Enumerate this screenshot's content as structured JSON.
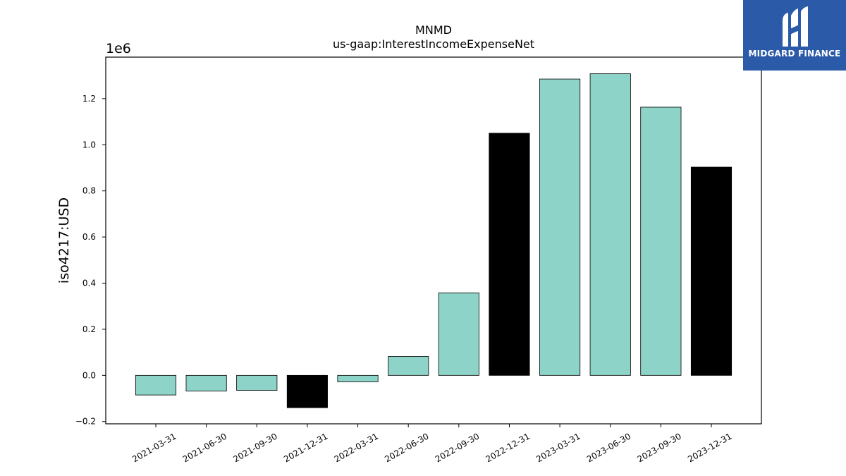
{
  "logo": {
    "text": "MIDGARD FINANCE",
    "bg_color": "#2b5aa8"
  },
  "chart_data": {
    "type": "bar",
    "title": "MNMD",
    "subtitle": "us-gaap:InterestIncomeExpenseNet",
    "xlabel": "",
    "ylabel": "iso4217:USD",
    "y_scale_label": "1e6",
    "ylim": [
      -0.21,
      1.38
    ],
    "yticks": [
      -0.2,
      0.0,
      0.2,
      0.4,
      0.6,
      0.8,
      1.0,
      1.2
    ],
    "ytick_labels": [
      "−0.2",
      "0.0",
      "0.2",
      "0.4",
      "0.6",
      "0.8",
      "1.0",
      "1.2"
    ],
    "grid": false,
    "colors": {
      "quarter": "#8dd3c7",
      "year_end": "#000000"
    },
    "categories": [
      "2021-03-31",
      "2021-06-30",
      "2021-09-30",
      "2021-12-31",
      "2022-03-31",
      "2022-06-30",
      "2022-09-30",
      "2022-12-31",
      "2023-03-31",
      "2023-06-30",
      "2023-09-30",
      "2023-12-31"
    ],
    "values": [
      -0.085,
      -0.068,
      -0.065,
      -0.14,
      -0.028,
      0.082,
      0.358,
      1.05,
      1.285,
      1.308,
      1.163,
      0.903
    ],
    "bar_colors": [
      "#8dd3c7",
      "#8dd3c7",
      "#8dd3c7",
      "#000000",
      "#8dd3c7",
      "#8dd3c7",
      "#8dd3c7",
      "#000000",
      "#8dd3c7",
      "#8dd3c7",
      "#8dd3c7",
      "#000000"
    ]
  }
}
